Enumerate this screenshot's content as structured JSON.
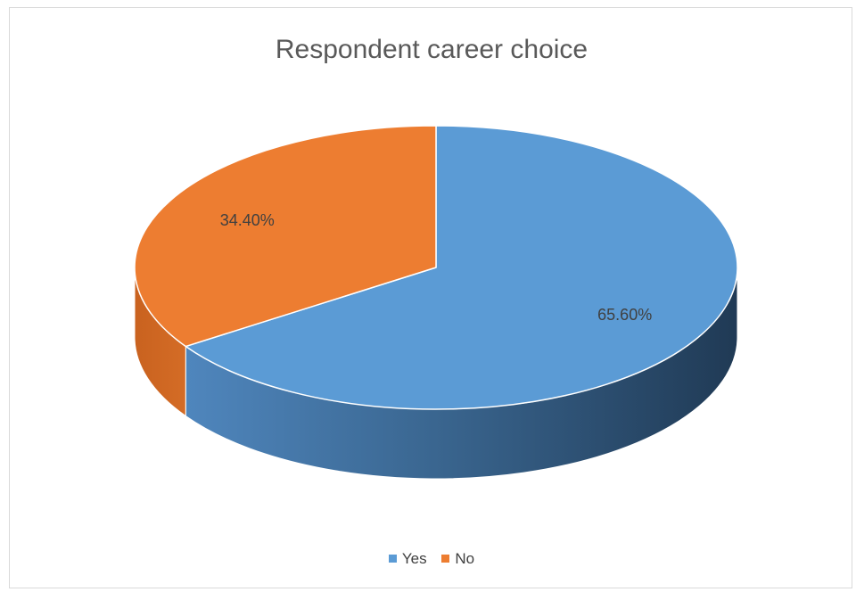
{
  "chart_data": {
    "type": "pie",
    "title": "Respondent career choice",
    "categories": [
      "Yes",
      "No"
    ],
    "values": [
      65.6,
      34.4
    ],
    "data_labels": [
      "65.60%",
      "34.40%"
    ],
    "colors": [
      "#5b9bd5",
      "#ed7d31"
    ],
    "style": "3d",
    "legend_position": "bottom"
  }
}
